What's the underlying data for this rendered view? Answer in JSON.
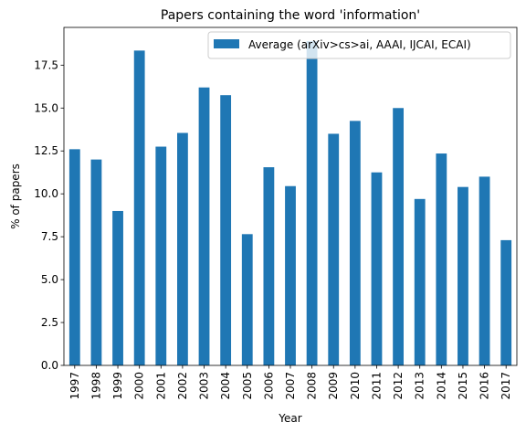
{
  "chart_data": {
    "type": "bar",
    "title": "Papers containing the word 'information'",
    "xlabel": "Year",
    "ylabel": "% of papers",
    "ylim": [
      0,
      19.7
    ],
    "yticks": [
      "0.0",
      "2.5",
      "5.0",
      "7.5",
      "10.0",
      "12.5",
      "15.0",
      "17.5"
    ],
    "grid": false,
    "legend_position": "top-right",
    "categories": [
      "1997",
      "1998",
      "1999",
      "2000",
      "2001",
      "2002",
      "2003",
      "2004",
      "2005",
      "2006",
      "2007",
      "2008",
      "2009",
      "2010",
      "2011",
      "2012",
      "2013",
      "2014",
      "2015",
      "2016",
      "2017"
    ],
    "series": [
      {
        "name": "Average (arXiv>cs>ai, AAAI, IJCAI, ECAI)",
        "color": "#1f77b4",
        "values": [
          12.6,
          12.0,
          9.0,
          18.35,
          12.75,
          13.55,
          16.2,
          15.75,
          7.65,
          11.55,
          10.45,
          18.9,
          13.5,
          14.25,
          11.25,
          15.0,
          9.7,
          12.35,
          10.4,
          11.0,
          7.3
        ]
      }
    ]
  }
}
